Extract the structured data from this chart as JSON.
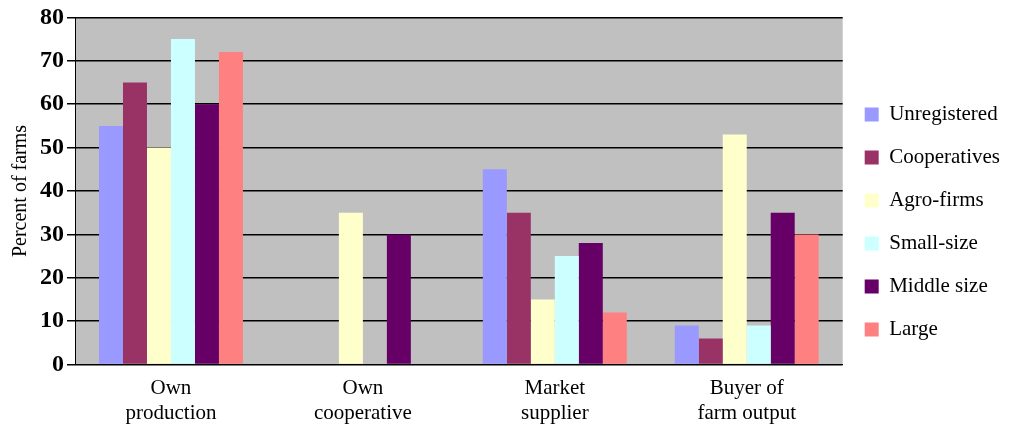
{
  "chart_data": {
    "type": "bar",
    "ylabel": "Percent of farms",
    "categories": [
      "Own production",
      "Own cooperative",
      "Market supplier",
      "Buyer of farm output"
    ],
    "series": [
      {
        "name": "Unregistered",
        "color": "#9999ff",
        "values": [
          55,
          0,
          45,
          9
        ]
      },
      {
        "name": "Cooperatives",
        "color": "#993366",
        "values": [
          65,
          0,
          35,
          6
        ]
      },
      {
        "name": "Agro-firms",
        "color": "#ffffcc",
        "values": [
          50,
          35,
          15,
          53
        ]
      },
      {
        "name": "Small-size",
        "color": "#ccffff",
        "values": [
          75,
          0,
          25,
          9
        ]
      },
      {
        "name": "Middle size",
        "color": "#660066",
        "values": [
          60,
          30,
          28,
          35
        ]
      },
      {
        "name": "Large",
        "color": "#ff8080",
        "values": [
          72,
          0,
          12,
          30
        ]
      }
    ],
    "ylim": [
      0,
      80
    ],
    "yticks": [
      0,
      10,
      20,
      30,
      40,
      50,
      60,
      70,
      80
    ],
    "grid": "y",
    "legend": "right"
  }
}
